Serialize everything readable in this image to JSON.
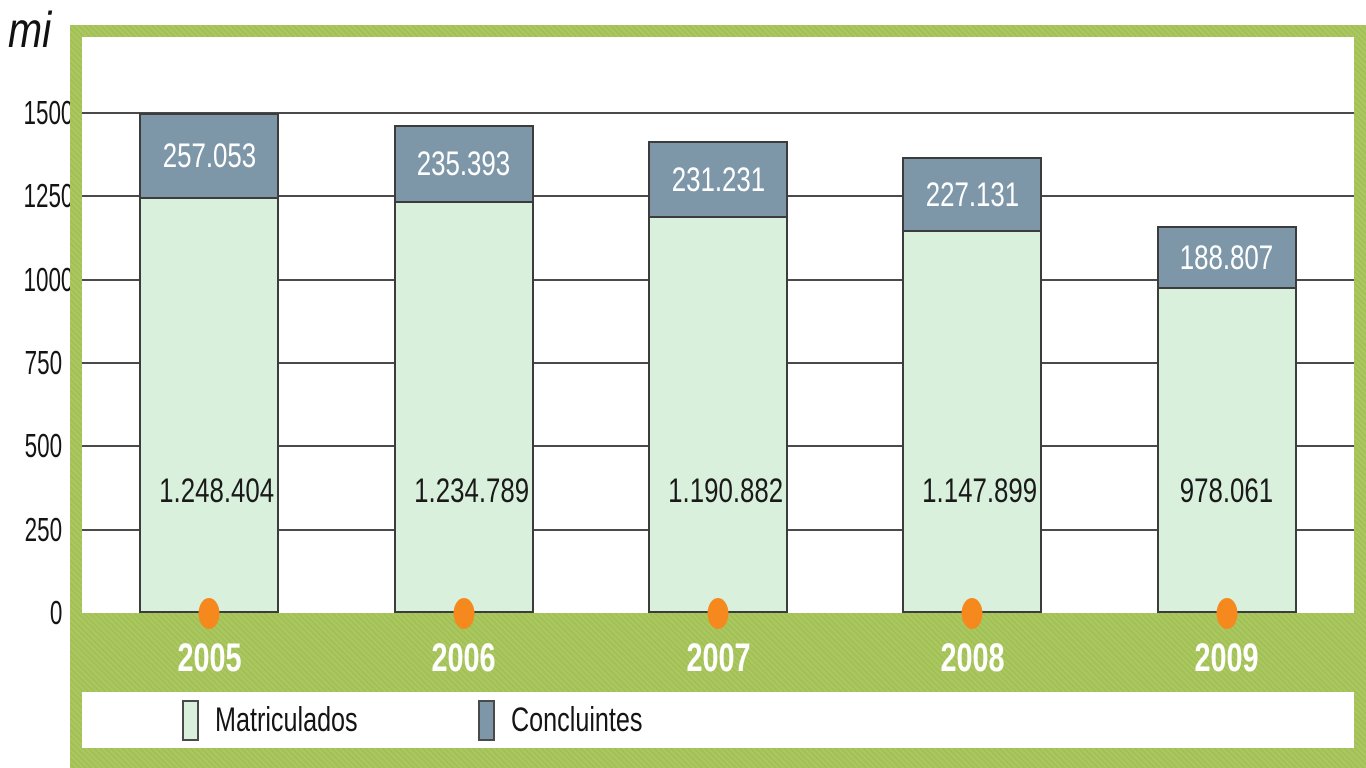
{
  "chart_data": {
    "type": "bar",
    "stacked": true,
    "title": "",
    "ylabel": "mi",
    "xlabel": "",
    "categories": [
      "2005",
      "2006",
      "2007",
      "2008",
      "2009"
    ],
    "series": [
      {
        "name": "Matriculados",
        "values": [
          1248404,
          1234789,
          1190882,
          1147899,
          978061
        ],
        "labels": [
          "1.248.404",
          "1.234.789",
          "1.190.882",
          "1.147.899",
          "978.061"
        ],
        "color": "#d9f1dc",
        "label_color": "#1a1a1a"
      },
      {
        "name": "Concluintes",
        "values": [
          257053,
          235393,
          231231,
          227131,
          188807
        ],
        "labels": [
          "257.053",
          "235.393",
          "231.231",
          "227.131",
          "188.807"
        ],
        "color": "#7d97a9",
        "label_color": "#ffffff"
      }
    ],
    "yticks": [
      0,
      250,
      500,
      750,
      1000,
      1250,
      1500
    ],
    "ylim": [
      0,
      1728
    ],
    "y_unit": "thousands",
    "grid": true,
    "legend_position": "bottom",
    "colors": {
      "frame_green": "#a2c153",
      "bar_border": "#3c3c3c",
      "gridline": "#4a4a4a",
      "axis_marker_orange": "#f6891e",
      "year_text": "#ffffff"
    }
  },
  "legend": {
    "items": [
      {
        "label": "Matriculados",
        "color": "#d9f1dc"
      },
      {
        "label": "Concluintes",
        "color": "#7d97a9"
      }
    ]
  }
}
